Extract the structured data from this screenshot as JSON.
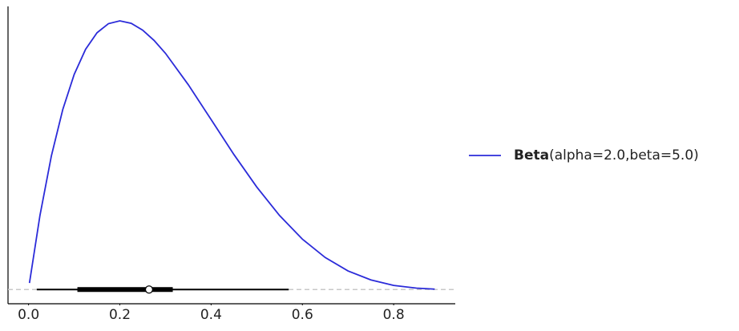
{
  "chart_data": {
    "type": "line",
    "x": [
      0.002,
      0.025,
      0.05,
      0.075,
      0.1,
      0.125,
      0.15,
      0.175,
      0.2,
      0.225,
      0.25,
      0.275,
      0.3,
      0.35,
      0.4,
      0.45,
      0.5,
      0.55,
      0.6,
      0.65,
      0.7,
      0.75,
      0.8,
      0.85,
      0.89
    ],
    "series": [
      {
        "name": "Beta",
        "params": "(alpha=2.0,beta=5.0)",
        "color": "#2b2bd9",
        "values": [
          0.06,
          0.678,
          1.222,
          1.647,
          1.968,
          2.198,
          2.349,
          2.432,
          2.458,
          2.435,
          2.373,
          2.279,
          2.161,
          1.874,
          1.555,
          1.235,
          0.938,
          0.677,
          0.461,
          0.293,
          0.17,
          0.088,
          0.038,
          0.013,
          0.004
        ]
      }
    ],
    "interval": {
      "outer": [
        0.018,
        0.57
      ],
      "inner": [
        0.107,
        0.316
      ],
      "point": 0.264
    },
    "xlim": [
      -0.045,
      0.935
    ],
    "ylim": [
      -0.13,
      2.59
    ],
    "xticks": [
      {
        "value": 0,
        "label": "0.0"
      },
      0.2,
      0.4,
      0.6,
      0.8
    ],
    "legend": "right"
  }
}
